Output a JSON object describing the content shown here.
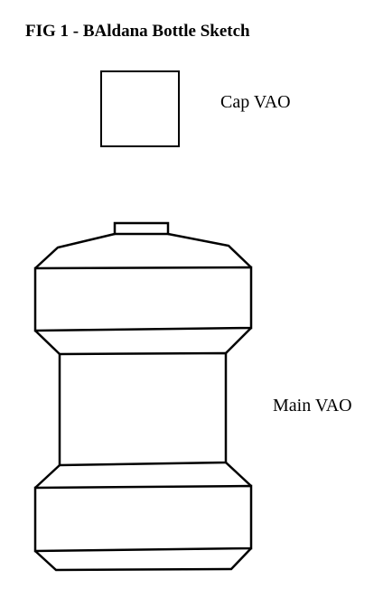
{
  "figure": {
    "title": "FIG 1 - BAldana Bottle Sketch"
  },
  "labels": {
    "cap": "Cap VAO",
    "main": "Main VAO"
  }
}
